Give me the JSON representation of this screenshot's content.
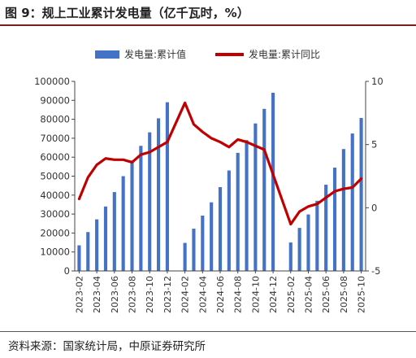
{
  "header": {
    "title": "图 9：规上工业累计发电量（亿千瓦时，%）"
  },
  "footer": {
    "source": "资料来源：国家统计局，中原证券研究所"
  },
  "colors": {
    "bar": "#4472C4",
    "line": "#C00000",
    "rule": "#7a1f1f",
    "axis": "#444444"
  },
  "chart_data": {
    "type": "bar",
    "title": "",
    "xlabel": "",
    "ylabel": "",
    "legend_position": "top-center",
    "grid": false,
    "x": [
      "2023-02",
      "2023-03",
      "2023-04",
      "2023-05",
      "2023-06",
      "2023-07",
      "2023-08",
      "2023-09",
      "2023-10",
      "2023-11",
      "2023-12",
      "2024-01",
      "2024-02",
      "2024-03",
      "2024-04",
      "2024-05",
      "2024-06",
      "2024-07",
      "2024-08",
      "2024-09",
      "2024-10",
      "2024-11",
      "2024-12",
      "2025-01",
      "2025-02",
      "2025-03",
      "2025-04",
      "2025-05",
      "2025-06",
      "2025-07",
      "2025-08",
      "2025-09",
      "2025-10"
    ],
    "tick_labels": [
      "2023-02",
      "2023-04",
      "2023-06",
      "2023-08",
      "2023-10",
      "2023-12",
      "2024-02",
      "2024-04",
      "2024-06",
      "2024-08",
      "2024-10",
      "2024-12",
      "2025-02",
      "2025-04",
      "2025-06",
      "2025-08",
      "2025-10"
    ],
    "y_left": {
      "min": 0,
      "max": 100000,
      "ticks": [
        "0",
        "10000",
        "20000",
        "30000",
        "40000",
        "50000",
        "60000",
        "70000",
        "80000",
        "90000",
        "100000"
      ]
    },
    "y_right": {
      "min": -5,
      "max": 10,
      "ticks": [
        "-5",
        "0",
        "5",
        "10"
      ]
    },
    "series": [
      {
        "name": "发电量:累计值",
        "kind": "bar",
        "axis": "left",
        "values": [
          13500,
          20500,
          27200,
          34000,
          41600,
          50000,
          58200,
          66000,
          73100,
          80500,
          89000,
          null,
          14800,
          22300,
          29200,
          36200,
          44200,
          53000,
          62300,
          69000,
          77800,
          85500,
          94000,
          null,
          15000,
          22700,
          29800,
          37000,
          45500,
          54500,
          64300,
          72500,
          80700
        ]
      },
      {
        "name": "发电量:累计同比",
        "kind": "line",
        "axis": "right",
        "values": [
          0.7,
          2.4,
          3.4,
          3.9,
          3.8,
          3.8,
          3.6,
          4.2,
          4.4,
          4.8,
          5.2,
          null,
          8.3,
          6.6,
          6.0,
          5.5,
          5.2,
          4.8,
          5.4,
          5.2,
          4.9,
          4.6,
          null,
          null,
          -1.3,
          -0.3,
          0.1,
          0.3,
          0.8,
          1.3,
          1.5,
          1.6,
          2.3
        ]
      }
    ]
  }
}
